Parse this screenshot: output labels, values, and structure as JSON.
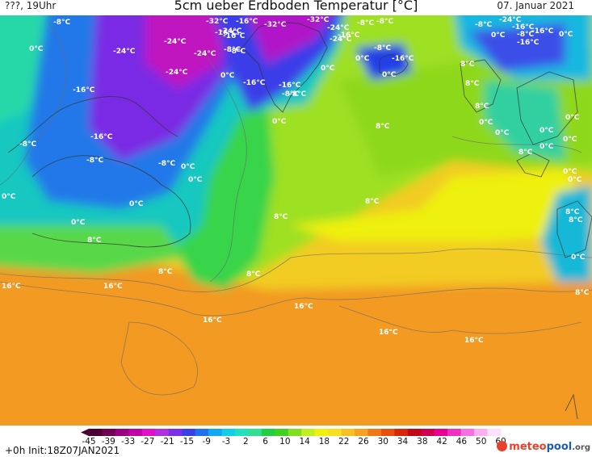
{
  "header": {
    "left": "???, 19Uhr",
    "title": "5cm ueber Erdboden Temperatur [°C]",
    "date": "07. Januar 2021"
  },
  "map": {
    "labels": [
      {
        "text": "-8°C"
      },
      {
        "text": "-32°C"
      },
      {
        "text": "-16°C"
      },
      {
        "text": "-8°C"
      },
      {
        "text": "-24°C"
      },
      {
        "text": "-32°C"
      },
      {
        "text": "-24°C"
      },
      {
        "text": "-8°C"
      },
      {
        "text": "-24°C"
      },
      {
        "text": "-16°C"
      },
      {
        "text": "-8°C"
      },
      {
        "text": "0°C"
      },
      {
        "text": "-16°C"
      },
      {
        "text": "-32°C"
      },
      {
        "text": "-24°C"
      },
      {
        "text": "-16°C"
      },
      {
        "text": "-24°C"
      },
      {
        "text": "-16°C"
      },
      {
        "text": "-8°C"
      },
      {
        "text": "-16°C"
      },
      {
        "text": "0°C"
      },
      {
        "text": "-8°C"
      },
      {
        "text": "-16°C"
      },
      {
        "text": "0°C"
      },
      {
        "text": "-24°C"
      },
      {
        "text": "-16°C"
      },
      {
        "text": "-24°C"
      },
      {
        "text": "-8°C"
      },
      {
        "text": "0°C"
      },
      {
        "text": "-8°C"
      },
      {
        "text": "0°C"
      },
      {
        "text": "0°C"
      },
      {
        "text": "0°C"
      },
      {
        "text": "8°C"
      },
      {
        "text": "8°C"
      },
      {
        "text": "0°C"
      },
      {
        "text": "-24°C"
      },
      {
        "text": "-16°C"
      },
      {
        "text": "-16°C"
      },
      {
        "text": "-16°C"
      },
      {
        "text": "-8°C"
      },
      {
        "text": "0°C"
      },
      {
        "text": "8°C"
      },
      {
        "text": "8°C"
      },
      {
        "text": "0°C"
      },
      {
        "text": "-8°C"
      },
      {
        "text": "-8°C"
      },
      {
        "text": "0°C"
      },
      {
        "text": "0°C"
      },
      {
        "text": "0°C"
      },
      {
        "text": "8°C"
      },
      {
        "text": "0°C"
      },
      {
        "text": "0°C"
      },
      {
        "text": "0°C"
      },
      {
        "text": "0°C"
      },
      {
        "text": "8°C"
      },
      {
        "text": "8°C"
      },
      {
        "text": "8°C"
      },
      {
        "text": "8°C"
      },
      {
        "text": "8°C"
      },
      {
        "text": "16°C"
      },
      {
        "text": "16°C"
      },
      {
        "text": "16°C"
      },
      {
        "text": "16°C"
      },
      {
        "text": "16°C"
      },
      {
        "text": "16°C"
      },
      {
        "text": "8°C"
      },
      {
        "text": "0°C"
      },
      {
        "text": "0°C"
      },
      {
        "text": "8°C"
      },
      {
        "text": "0°C"
      },
      {
        "text": "8°C"
      },
      {
        "text": "-8°C"
      },
      {
        "text": "-16°C"
      },
      {
        "text": "0°C"
      },
      {
        "text": "-8°C"
      },
      {
        "text": "0°C"
      }
    ]
  },
  "colorbar": {
    "colors": [
      "#4a0030",
      "#700050",
      "#9a0080",
      "#c000a8",
      "#e010c8",
      "#b030e0",
      "#7a30e8",
      "#3a40e8",
      "#2070f0",
      "#10a8f0",
      "#10d0e8",
      "#20e0c0",
      "#30e090",
      "#20d040",
      "#40d020",
      "#80e020",
      "#c0f020",
      "#f0f010",
      "#f8e020",
      "#f8c020",
      "#f8a020",
      "#f07818",
      "#e85010",
      "#d82808",
      "#c00818",
      "#d00050",
      "#e80090",
      "#f030c0",
      "#f870e0",
      "#fcb0f0",
      "#fde0fa"
    ],
    "ticks": [
      "-45",
      "-39",
      "-33",
      "-27",
      "-21",
      "-15",
      "-9",
      "-3",
      "2",
      "6",
      "10",
      "14",
      "18",
      "22",
      "26",
      "30",
      "34",
      "38",
      "42",
      "46",
      "50",
      "60"
    ]
  },
  "footer": {
    "init": "+0h  Init:18Z07JAN2021",
    "logo_a": "meteo",
    "logo_b": "pool",
    "logo_c": ".org"
  }
}
